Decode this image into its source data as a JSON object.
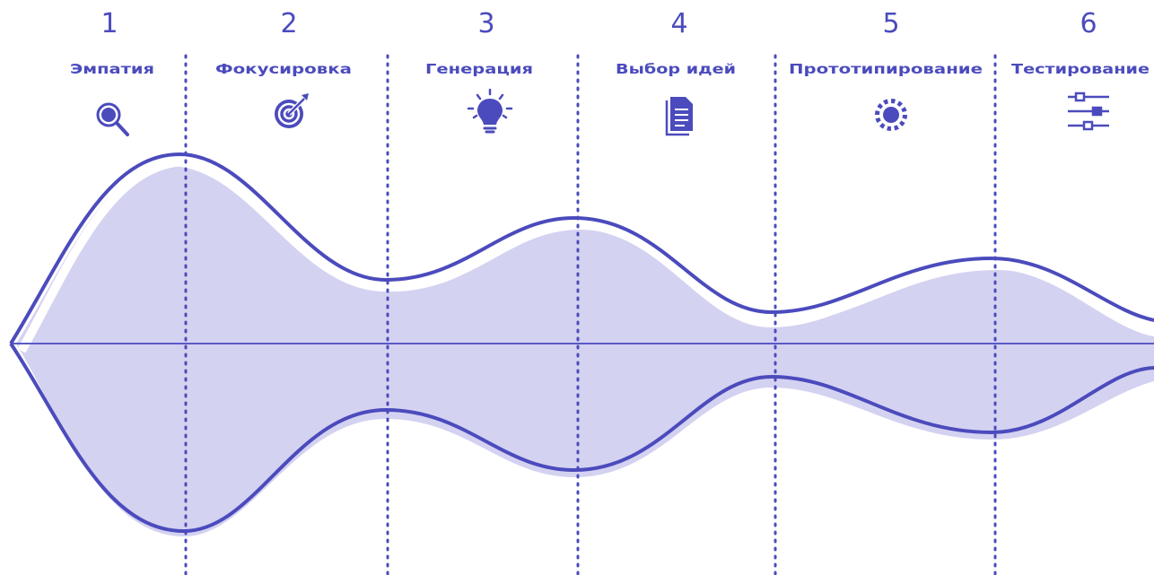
{
  "stages": [
    {
      "number": "1",
      "name": "Эмпатия",
      "icon": "magnifier-icon"
    },
    {
      "number": "2",
      "name": "Фокусировка",
      "icon": "target-icon"
    },
    {
      "number": "3",
      "name": "Генерация",
      "icon": "lightbulb-icon"
    },
    {
      "number": "4",
      "name": "Выбор идей",
      "icon": "document-icon"
    },
    {
      "number": "5",
      "name": "Прототипирование",
      "icon": "gear-icon"
    },
    {
      "number": "6",
      "name": "Тестирование",
      "icon": "sliders-icon"
    }
  ],
  "colors": {
    "primary": "#4b4bbd",
    "fill": "#d4d2f1",
    "background": "#ffffff"
  }
}
